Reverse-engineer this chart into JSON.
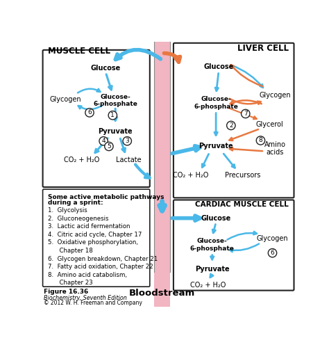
{
  "background_color": "#ffffff",
  "bloodstream_color": "#f0a8b8",
  "blue": "#4ab8e8",
  "orange": "#e87840",
  "border": "#222222",
  "title": "Bloodstream",
  "muscle_label": "MUSCLE CELL",
  "liver_label": "LIVER CELL",
  "cardiac_label": "CARDIAC MUSCLE CELL",
  "list_title1": "Some active metabolic pathways",
  "list_title2": "during a sprint:",
  "list_items": [
    "1.  Glycolysis",
    "2.  Gluconeogenesis",
    "3.  Lactic acid fermentation",
    "4.  Citric acid cycle, Chapter 17",
    "5.  Oxidative phosphorylation,",
    "      Chapter 18",
    "6.  Glycogen breakdown, Chapter 21",
    "7.  Fatty acid oxidation, Chapter 22",
    "8.  Amino acid catabolism,",
    "      Chapter 23"
  ],
  "fig1": "Figure 16.36",
  "fig2": "Biochemistry, Seventh Edition",
  "fig3": "© 2012 W. H. Freeman and Company"
}
